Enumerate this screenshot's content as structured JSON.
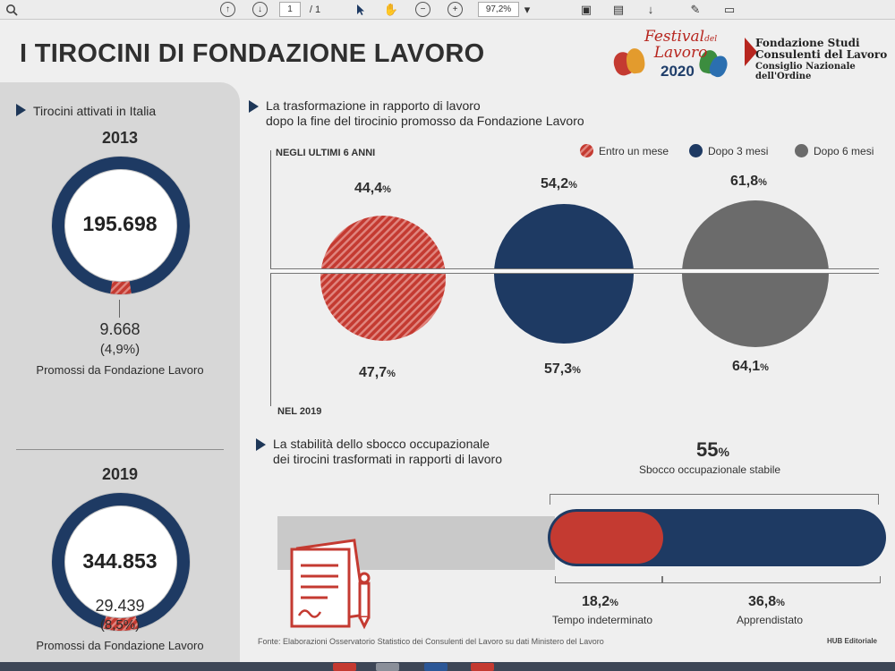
{
  "viewer": {
    "page_current": "1",
    "page_total": "/ 1",
    "zoom": "97,2%"
  },
  "infographic": {
    "title": "I TIROCINI DI FONDAZIONE LAVORO",
    "logos": {
      "festival_line1": "Festival",
      "festival_small": "del",
      "festival_line2": "Lavoro",
      "festival_year": "2020",
      "fondazione_line1": "Fondazione Studi",
      "fondazione_line2": "Consulenti del Lavoro",
      "fondazione_line3": "Consiglio Nazionale dell'Ordine"
    },
    "left": {
      "heading": "Tirocini attivati in Italia",
      "blocks": [
        {
          "year": "2013",
          "total": "195.698",
          "promoted": "9.668",
          "pct": "(4,9%)",
          "label": "Promossi da Fondazione Lavoro",
          "share": 0.049
        },
        {
          "year": "2019",
          "total": "344.853",
          "promoted": "29.439",
          "pct": "(8,5%)",
          "label": "Promossi da Fondazione Lavoro",
          "share": 0.085
        }
      ]
    },
    "transformation": {
      "heading_line1": "La trasformazione in rapporto di lavoro",
      "heading_line2": "dopo la fine del tirocinio promosso da Fondazione Lavoro",
      "top_label": "NEGLI ULTIMI 6 ANNI",
      "bottom_label": "NEL 2019",
      "legend": [
        {
          "label": "Entro un mese",
          "color": "#c43a31"
        },
        {
          "label": "Dopo 3 mesi",
          "color": "#1e3a63"
        },
        {
          "label": "Dopo 6 mesi",
          "color": "#6b6b6b"
        }
      ],
      "pct_symbol": "%",
      "columns": [
        {
          "top": "44,4",
          "bottom": "47,7"
        },
        {
          "top": "54,2",
          "bottom": "57,3"
        },
        {
          "top": "61,8",
          "bottom": "64,1"
        }
      ]
    },
    "stability": {
      "heading_line1": "La stabilità dello sbocco occupazionale",
      "heading_line2": "dei tirocini trasformati in rapporti di lavoro",
      "stable_value": "55",
      "stable_label": "Sbocco occupazionale stabile",
      "stable_share": 0.55,
      "segments": [
        {
          "value": "18,2",
          "label": "Tempo indeterminato",
          "share": 0.182
        },
        {
          "value": "36,8",
          "label": "Apprendistato",
          "share": 0.368
        }
      ]
    },
    "source": "Fonte: Elaborazioni Osservatorio Statistico dei Consulenti del Lavoro su dati Ministero del Lavoro",
    "credit": "HUB Editoriale"
  }
}
